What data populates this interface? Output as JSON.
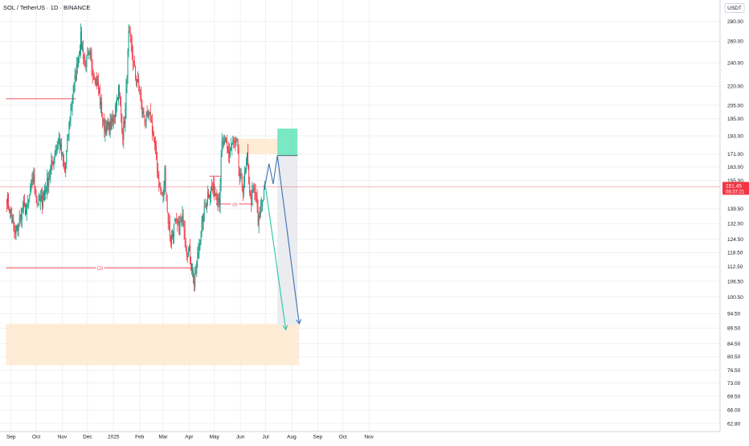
{
  "symbol_title": "SOL / TetherUS · 1D · BINANCE",
  "currency": "USDT",
  "last_price": "151.45",
  "countdown": "08:37:21",
  "colors": {
    "up": "#089981",
    "down": "#f23645",
    "grid": "#eef0f3",
    "text": "#131722",
    "axis_line": "#d1d4dc",
    "level_line": "#f7525f",
    "proj_blue": "#3d6fb5",
    "proj_teal": "#26c6a6",
    "zone_orange": "#ffe9cf",
    "zone_green": "#4ee0b0",
    "zone_gray": "#e9ebee"
  },
  "chart_data": {
    "type": "candlestick",
    "symbol": "SOL / TetherUS",
    "interval": "1D",
    "exchange": "BINANCE",
    "y_scale": "log",
    "ylim": [
      62,
      300
    ],
    "y_ticks": [
      "280.00",
      "260.00",
      "240.00",
      "220.00",
      "205.00",
      "195.00",
      "183.00",
      "171.00",
      "163.00",
      "155.00",
      "139.50",
      "132.00",
      "124.50",
      "118.50",
      "112.50",
      "106.50",
      "100.50",
      "94.50",
      "89.50",
      "84.50",
      "80.50",
      "76.50",
      "73.00",
      "69.50",
      "66.00",
      "62.80"
    ],
    "x_ticks": [
      "Sep",
      "Oct",
      "Nov",
      "Dec",
      "2025",
      "Feb",
      "Mar",
      "Apr",
      "May",
      "Jun",
      "Jul",
      "Aug",
      "Sep",
      "Oct",
      "Nov"
    ],
    "price_path": [
      [
        "2024-08-26",
        148
      ],
      [
        "2024-09-03",
        132
      ],
      [
        "2024-09-06",
        126
      ],
      [
        "2024-09-15",
        140
      ],
      [
        "2024-09-20",
        138
      ],
      [
        "2024-09-27",
        158
      ],
      [
        "2024-10-02",
        143
      ],
      [
        "2024-10-08",
        144
      ],
      [
        "2024-10-15",
        155
      ],
      [
        "2024-10-22",
        170
      ],
      [
        "2024-10-28",
        180
      ],
      [
        "2024-11-04",
        160
      ],
      [
        "2024-11-09",
        190
      ],
      [
        "2024-11-13",
        210
      ],
      [
        "2024-11-18",
        235
      ],
      [
        "2024-11-23",
        262
      ],
      [
        "2024-11-28",
        240
      ],
      [
        "2024-12-04",
        245
      ],
      [
        "2024-12-08",
        233
      ],
      [
        "2024-12-14",
        218
      ],
      [
        "2024-12-20",
        190
      ],
      [
        "2024-12-26",
        188
      ],
      [
        "2024-12-31",
        192
      ],
      [
        "2025-01-04",
        207
      ],
      [
        "2025-01-07",
        218
      ],
      [
        "2025-01-12",
        184
      ],
      [
        "2025-01-15",
        200
      ],
      [
        "2025-01-19",
        265
      ],
      [
        "2025-01-22",
        255
      ],
      [
        "2025-01-27",
        228
      ],
      [
        "2025-02-01",
        218
      ],
      [
        "2025-02-04",
        200
      ],
      [
        "2025-02-09",
        195
      ],
      [
        "2025-02-14",
        196
      ],
      [
        "2025-02-20",
        172
      ],
      [
        "2025-02-25",
        150
      ],
      [
        "2025-03-01",
        145
      ],
      [
        "2025-03-03",
        160
      ],
      [
        "2025-03-06",
        138
      ],
      [
        "2025-03-10",
        124
      ],
      [
        "2025-03-15",
        132
      ],
      [
        "2025-03-20",
        130
      ],
      [
        "2025-03-25",
        135
      ],
      [
        "2025-03-29",
        120
      ],
      [
        "2025-04-02",
        118
      ],
      [
        "2025-04-07",
        105
      ],
      [
        "2025-04-12",
        120
      ],
      [
        "2025-04-17",
        133
      ],
      [
        "2025-04-23",
        148
      ],
      [
        "2025-04-28",
        150
      ],
      [
        "2025-05-03",
        148
      ],
      [
        "2025-05-07",
        145
      ],
      [
        "2025-05-10",
        177
      ],
      [
        "2025-05-14",
        178
      ],
      [
        "2025-05-18",
        172
      ],
      [
        "2025-05-23",
        178
      ],
      [
        "2025-05-28",
        176
      ],
      [
        "2025-05-31",
        157
      ],
      [
        "2025-06-04",
        151
      ],
      [
        "2025-06-09",
        168
      ],
      [
        "2025-06-13",
        144
      ],
      [
        "2025-06-17",
        149
      ],
      [
        "2025-06-20",
        145
      ],
      [
        "2025-06-22",
        131
      ],
      [
        "2025-06-26",
        142
      ],
      [
        "2025-06-30",
        151.45
      ]
    ],
    "annotations": {
      "horizontal_lines": [
        {
          "price": 210,
          "from": "2024-08-26",
          "to": "2024-11-17"
        },
        {
          "price": 112,
          "from": "2024-08-26",
          "to": "2025-04-07",
          "label": "Ch"
        },
        {
          "price": 157.5,
          "from": "2025-04-25",
          "to": "2025-05-10"
        },
        {
          "price": 142,
          "from": "2025-05-03",
          "to": "2025-06-17",
          "label": "cb"
        }
      ],
      "zones": [
        {
          "kind": "supply",
          "from": "2025-05-28",
          "to": "2025-07-15",
          "low": 171,
          "high": 181
        },
        {
          "kind": "target_demand",
          "from": "2024-08-26",
          "to": "2025-08-10",
          "low": 78,
          "high": 91
        },
        {
          "kind": "position_profit",
          "from": "2025-07-15",
          "to": "2025-08-08",
          "low": 170,
          "high": 188
        },
        {
          "kind": "position_risk",
          "from": "2025-07-15",
          "to": "2025-08-08",
          "low": 90.5,
          "high": 170
        }
      ],
      "projection_path": [
        [
          "2025-06-30",
          151
        ],
        [
          "2025-07-05",
          165
        ],
        [
          "2025-07-10",
          153
        ],
        [
          "2025-07-15",
          170
        ],
        [
          "2025-08-10",
          91
        ]
      ],
      "projection_path_alt": [
        [
          "2025-07-01",
          151
        ],
        [
          "2025-07-25",
          89
        ]
      ],
      "last_price_line": 151.45
    }
  }
}
